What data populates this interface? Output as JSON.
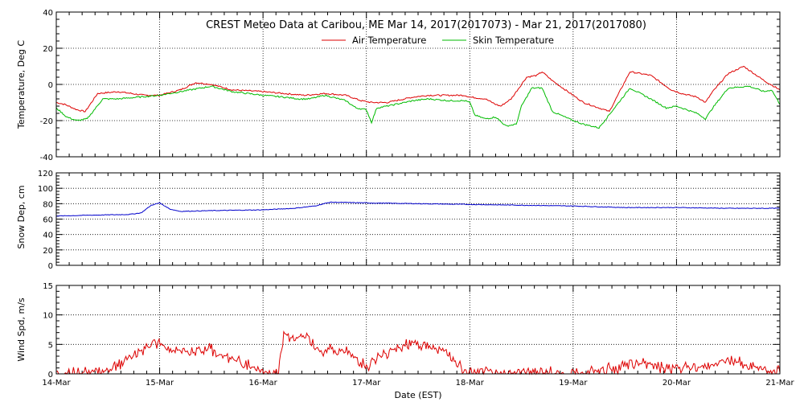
{
  "chart_data": [
    {
      "type": "line",
      "title": "CREST Meteo Data at Caribou, ME   Mar 14, 2017(2017073) - Mar 21, 2017(2017080)",
      "ylabel": "Temperature, Deg C",
      "xlim": [
        0,
        7
      ],
      "ylim": [
        -40,
        40
      ],
      "yticks": [
        -40,
        -20,
        0,
        20,
        40
      ],
      "legend_placement": "top-center",
      "grid": true,
      "series": [
        {
          "name": "Air Temperature",
          "color": "#dd0000",
          "x": [
            0,
            0.08,
            0.2,
            0.28,
            0.4,
            0.6,
            0.85,
            1.0,
            1.2,
            1.35,
            1.5,
            1.7,
            2.0,
            2.2,
            2.4,
            2.6,
            2.8,
            2.95,
            3.05,
            3.2,
            3.45,
            3.6,
            3.8,
            3.95,
            4.0,
            4.15,
            4.25,
            4.3,
            4.4,
            4.55,
            4.65,
            4.7,
            4.8,
            5.0,
            5.1,
            5.35,
            5.55,
            5.75,
            5.95,
            6.05,
            6.2,
            6.28,
            6.35,
            6.5,
            6.65,
            6.75,
            6.85,
            7.0
          ],
          "y": [
            -10,
            -11,
            -14,
            -15,
            -5,
            -4,
            -6,
            -6,
            -3,
            1,
            0,
            -3,
            -4,
            -5,
            -6,
            -5,
            -6,
            -9,
            -10,
            -10,
            -7,
            -6,
            -6,
            -6,
            -7,
            -8,
            -11,
            -12,
            -8,
            4,
            5,
            7,
            2,
            -6,
            -10,
            -15,
            7,
            5,
            -3,
            -5,
            -7,
            -10,
            -4,
            6,
            10,
            6,
            2,
            -3
          ]
        },
        {
          "name": "Skin Temperature",
          "color": "#00bb00",
          "x": [
            0,
            0.1,
            0.2,
            0.3,
            0.45,
            0.6,
            1.0,
            1.2,
            1.5,
            1.7,
            2.0,
            2.2,
            2.35,
            2.45,
            2.6,
            2.8,
            2.9,
            3.0,
            3.05,
            3.1,
            3.2,
            3.45,
            3.6,
            3.8,
            3.95,
            4.0,
            4.05,
            4.15,
            4.25,
            4.35,
            4.45,
            4.5,
            4.6,
            4.7,
            4.8,
            5.0,
            5.1,
            5.25,
            5.55,
            5.75,
            5.9,
            6.0,
            6.2,
            6.28,
            6.35,
            6.5,
            6.7,
            6.8,
            6.85,
            6.92,
            7.0
          ],
          "y": [
            -13,
            -18,
            -20,
            -19,
            -8,
            -8,
            -6,
            -4,
            -1,
            -4,
            -6,
            -7,
            -8,
            -8,
            -6,
            -9,
            -13,
            -14,
            -21,
            -13,
            -12,
            -9,
            -8,
            -9,
            -9,
            -10,
            -17,
            -19,
            -18,
            -23,
            -22,
            -12,
            -2,
            -2,
            -15,
            -20,
            -22,
            -24,
            -2,
            -8,
            -13,
            -12,
            -16,
            -19,
            -13,
            -2,
            -1,
            -3,
            -4,
            -3,
            -11
          ]
        }
      ]
    },
    {
      "type": "line",
      "title": "",
      "ylabel": "Snow Dep, cm",
      "xlim": [
        0,
        7
      ],
      "ylim": [
        0,
        120
      ],
      "yticks": [
        0,
        20,
        40,
        60,
        80,
        100,
        120
      ],
      "grid": true,
      "series": [
        {
          "name": "",
          "color": "#0000cc",
          "x": [
            0,
            0.3,
            0.7,
            0.82,
            0.92,
            1.0,
            1.1,
            1.2,
            1.5,
            2.0,
            2.3,
            2.5,
            2.65,
            3.0,
            3.5,
            4.0,
            4.5,
            5.0,
            5.5,
            6.0,
            6.5,
            7.0
          ],
          "y": [
            64,
            65,
            66,
            68,
            78,
            81,
            73,
            70,
            71,
            72,
            74,
            77,
            82,
            81,
            80,
            79,
            78,
            77,
            75,
            75,
            74,
            74
          ]
        }
      ]
    },
    {
      "type": "line",
      "title": "",
      "xlabel": "Date (EST)",
      "ylabel": "Wind Spd, m/s",
      "xlim": [
        0,
        7
      ],
      "ylim": [
        0,
        15
      ],
      "yticks": [
        0,
        5,
        10,
        15
      ],
      "xticks": [
        "14-Mar",
        "15-Mar",
        "16-Mar",
        "17-Mar",
        "18-Mar",
        "19-Mar",
        "20-Mar",
        "21-Mar"
      ],
      "grid": true,
      "series": [
        {
          "name": "",
          "color": "#dd0000",
          "x": [
            0,
            0.2,
            0.35,
            0.5,
            0.75,
            0.95,
            1.05,
            1.15,
            1.3,
            1.45,
            1.6,
            1.8,
            1.95,
            2.05,
            2.15,
            2.2,
            2.3,
            2.4,
            2.55,
            2.75,
            2.9,
            3.0,
            3.1,
            3.3,
            3.45,
            3.6,
            3.75,
            3.85,
            3.95,
            4.0,
            4.2,
            4.4,
            4.6,
            4.75,
            4.9,
            5.0,
            5.3,
            5.6,
            5.7,
            5.8,
            5.95,
            6.1,
            6.35,
            6.45,
            6.6,
            6.75,
            6.9,
            7.0
          ],
          "y": [
            0,
            0,
            0.3,
            0.5,
            3,
            5.5,
            4.5,
            4,
            3.5,
            4.5,
            3,
            2,
            0.5,
            0,
            0.5,
            6.5,
            6,
            6.5,
            4,
            4,
            3,
            1,
            2.5,
            4.5,
            5.5,
            4.5,
            4,
            2,
            0.5,
            0,
            0.2,
            0,
            0.5,
            0.2,
            0,
            0,
            0.8,
            1.5,
            2,
            1.5,
            0.8,
            1,
            1.5,
            2.5,
            2,
            1,
            0.5,
            0.2
          ]
        }
      ]
    }
  ]
}
